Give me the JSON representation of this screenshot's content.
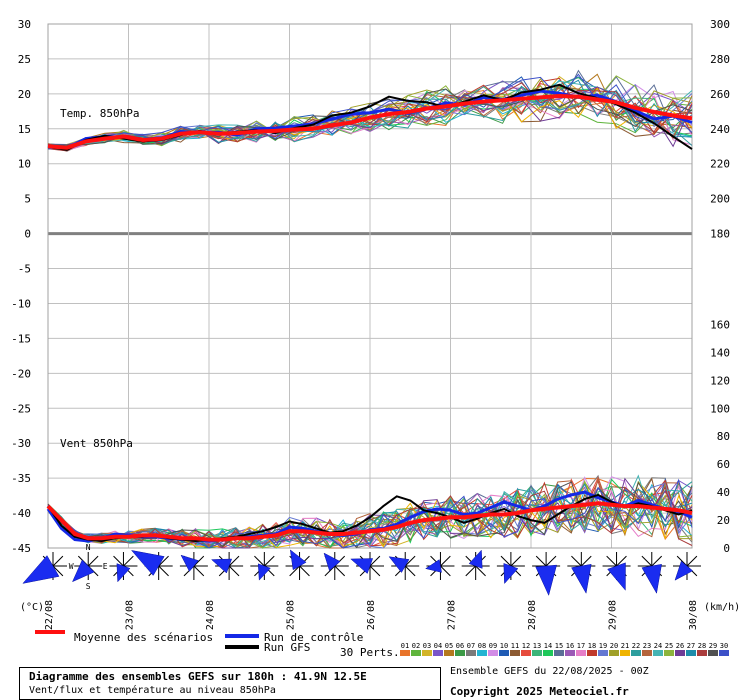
{
  "chart_data": {
    "type": "line",
    "title": "Diagramme des ensembles GEFS sur 180h : 41.9N 12.5E",
    "subtitle": "Vent/flux et température au niveau 850hPa",
    "run_info": "Ensemble GEFS du 22/08/2025 - 00Z",
    "copyright": "Copyright 2025 Meteociel.fr",
    "x_labels": [
      "22/08",
      "23/08",
      "24/08",
      "25/08",
      "26/08",
      "27/08",
      "28/08",
      "29/08",
      "30/08"
    ],
    "left_axis_unit": "(°C)",
    "right_axis_unit": "(km/h)",
    "left_ticks": [
      30,
      25,
      20,
      15,
      10,
      5,
      0,
      -5,
      -10,
      -15,
      -20,
      -25,
      -30,
      -35,
      -40,
      -45
    ],
    "right_ticks_top": [
      300,
      280,
      260,
      240,
      220,
      200,
      180
    ],
    "right_ticks_bottom": [
      160,
      140,
      120,
      100,
      80,
      60,
      40,
      20,
      0
    ],
    "temp_panel": {
      "label": "Temp. 850hPa",
      "ylim": [
        0,
        30
      ],
      "mean": [
        12.5,
        12.3,
        13.2,
        13.6,
        13.9,
        13.4,
        13.6,
        14.3,
        14.5,
        14.3,
        14.4,
        14.6,
        14.7,
        14.9,
        15.0,
        15.5,
        15.9,
        16.6,
        17.1,
        17.4,
        17.9,
        18.2,
        18.6,
        18.9,
        19.1,
        19.3,
        19.5,
        19.7,
        19.6,
        19.2,
        18.8,
        18.0,
        17.4,
        16.9,
        16.5
      ],
      "control": [
        12.6,
        12.2,
        13.6,
        13.9,
        13.8,
        13.5,
        13.7,
        14.6,
        14.4,
        14.5,
        14.1,
        15.0,
        15.1,
        15.4,
        15.7,
        16.4,
        17.1,
        17.3,
        17.8,
        17.2,
        17.9,
        18.7,
        18.4,
        19.5,
        19.2,
        19.8,
        20.4,
        20.1,
        19.5,
        19.8,
        18.9,
        17.6,
        16.4,
        16.8,
        15.9
      ],
      "gfs": [
        12.4,
        12.0,
        13.4,
        14.0,
        13.6,
        13.2,
        13.4,
        14.1,
        14.7,
        14.2,
        14.6,
        14.8,
        14.4,
        15.1,
        15.6,
        16.9,
        17.3,
        18.2,
        19.6,
        19.0,
        18.8,
        18.1,
        18.9,
        19.8,
        19.1,
        20.2,
        20.6,
        21.3,
        20.1,
        19.4,
        18.5,
        17.3,
        15.8,
        13.9,
        12.1
      ]
    },
    "wind_panel": {
      "label": "Vent 850hPa",
      "ylim": [
        0,
        100
      ],
      "mean": [
        30,
        20,
        10,
        7,
        7,
        8,
        8,
        9,
        9,
        8,
        7,
        7,
        6,
        6,
        7,
        7,
        8,
        9,
        12,
        12,
        11,
        10,
        10,
        11,
        12,
        13,
        15,
        18,
        20,
        21,
        22,
        22,
        23,
        24,
        24,
        25,
        27,
        28,
        29,
        30,
        31,
        32,
        31,
        30,
        30,
        29,
        28,
        27,
        25
      ],
      "control": [
        28,
        14,
        6,
        5,
        7,
        10,
        9,
        8,
        8,
        7,
        6,
        6,
        5,
        6,
        7,
        8,
        9,
        10,
        15,
        14,
        12,
        10,
        9,
        10,
        13,
        14,
        17,
        22,
        26,
        28,
        27,
        24,
        25,
        29,
        33,
        30,
        27,
        30,
        35,
        38,
        40,
        36,
        33,
        30,
        34,
        31,
        28,
        26,
        22
      ],
      "gfs": [
        30,
        16,
        8,
        6,
        5,
        7,
        8,
        8,
        9,
        7,
        6,
        5,
        6,
        7,
        8,
        10,
        12,
        15,
        19,
        17,
        14,
        11,
        12,
        16,
        22,
        30,
        37,
        34,
        27,
        25,
        22,
        18,
        21,
        25,
        28,
        23,
        20,
        18,
        24,
        30,
        35,
        38,
        33,
        29,
        32,
        30,
        27,
        24,
        27
      ]
    },
    "wind_directions": [
      {
        "dir_deg": 240,
        "speed_kmh": 32
      },
      {
        "dir_deg": 225,
        "speed_kmh": 18
      },
      {
        "dir_deg": 200,
        "speed_kmh": 12
      },
      {
        "dir_deg": 300,
        "speed_kmh": 28
      },
      {
        "dir_deg": 310,
        "speed_kmh": 12
      },
      {
        "dir_deg": 290,
        "speed_kmh": 14
      },
      {
        "dir_deg": 200,
        "speed_kmh": 10
      },
      {
        "dir_deg": 330,
        "speed_kmh": 14
      },
      {
        "dir_deg": 320,
        "speed_kmh": 12
      },
      {
        "dir_deg": 290,
        "speed_kmh": 16
      },
      {
        "dir_deg": 300,
        "speed_kmh": 14
      },
      {
        "dir_deg": 260,
        "speed_kmh": 10
      },
      {
        "dir_deg": 20,
        "speed_kmh": 12
      },
      {
        "dir_deg": 200,
        "speed_kmh": 14
      },
      {
        "dir_deg": 175,
        "speed_kmh": 26
      },
      {
        "dir_deg": 170,
        "speed_kmh": 24
      },
      {
        "dir_deg": 160,
        "speed_kmh": 22
      },
      {
        "dir_deg": 170,
        "speed_kmh": 24
      },
      {
        "dir_deg": 220,
        "speed_kmh": 14
      }
    ],
    "compass": {
      "n": "N",
      "e": "E",
      "s": "S",
      "w": "W"
    },
    "legend": {
      "mean_label": "Moyenne des scénarios",
      "control_label": "Run de contrôle",
      "gfs_label": "Run GFS",
      "perts_label": "30 Perts.",
      "pert_ids": [
        "01",
        "02",
        "03",
        "04",
        "05",
        "06",
        "07",
        "08",
        "09",
        "10",
        "11",
        "12",
        "13",
        "14",
        "15",
        "16",
        "17",
        "18",
        "19",
        "20",
        "21",
        "22",
        "23",
        "24",
        "25",
        "26",
        "27",
        "28",
        "29",
        "30"
      ]
    },
    "colors": {
      "mean": "#ff1010",
      "control": "#1428e6",
      "gfs": "#000000",
      "arrow": "#1a2cf0",
      "grid": "#c0c0c0",
      "perts": [
        "#e8742a",
        "#5fb43c",
        "#d2b428",
        "#7a55c8",
        "#b4781e",
        "#3c9a46",
        "#7a7a7a",
        "#23b4d2",
        "#d28ce6",
        "#1e5ab4",
        "#8c5a32",
        "#e64b3c",
        "#3cb478",
        "#1ec85a",
        "#5a6e96",
        "#9b59b6",
        "#e67ec8",
        "#c0392b",
        "#6478d2",
        "#a0a028",
        "#f0b400",
        "#2d9e9e",
        "#b4643c",
        "#46b4b4",
        "#8cb43c",
        "#6e3c96",
        "#1e8caa",
        "#aa3c3c",
        "#505050",
        "#3c50c8"
      ]
    }
  }
}
